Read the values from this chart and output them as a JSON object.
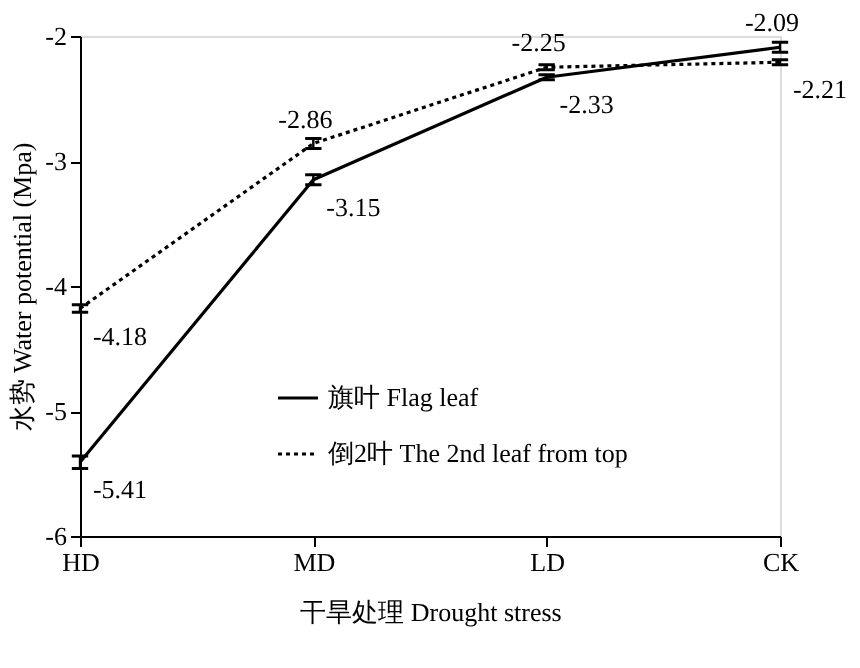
{
  "chart_data": {
    "type": "line",
    "xlabel": "干旱处理 Drought stress",
    "ylabel": "水势 Water potential (Mpa)",
    "categories": [
      "HD",
      "MD",
      "LD",
      "CK"
    ],
    "series": [
      {
        "name": "旗叶 Flag leaf",
        "color": "#000000",
        "line_style": "solid",
        "values": [
          -5.41,
          -3.15,
          -2.33,
          -2.09
        ],
        "errors": [
          0.05,
          0.04,
          0.02,
          0.04
        ]
      },
      {
        "name": "倒2叶 The 2nd leaf from top",
        "color": "#000000",
        "line_style": "dotted",
        "values": [
          -4.18,
          -2.86,
          -2.25,
          -2.21
        ],
        "errors": [
          0.03,
          0.04,
          0.02,
          0.02
        ]
      }
    ],
    "ylim": [
      -6,
      -2
    ],
    "yticks": [
      -6,
      -5,
      -4,
      -3,
      -2
    ],
    "grid": false,
    "legend": "bottom",
    "data_labels": true,
    "marker": "none"
  }
}
